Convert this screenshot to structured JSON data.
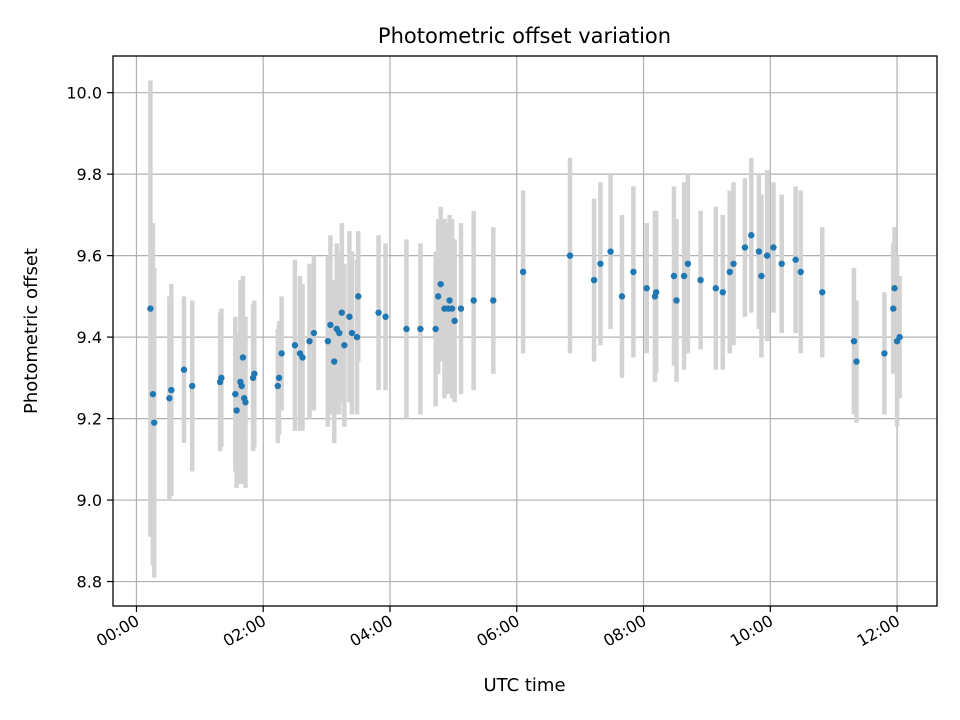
{
  "chart_data": {
    "type": "scatter",
    "title": "Photometric offset variation",
    "xlabel": "UTC time",
    "ylabel": "Photometric offset",
    "x_unit": "hours UTC",
    "x_tick_values": [
      0,
      2,
      4,
      6,
      8,
      10,
      12
    ],
    "x_tick_labels": [
      "00:00",
      "02:00",
      "04:00",
      "06:00",
      "08:00",
      "10:00",
      "12:00"
    ],
    "y_ticks": [
      8.8,
      9.0,
      9.2,
      9.4,
      9.6,
      9.8,
      10.0
    ],
    "y_tick_labels": [
      "8.8",
      "9.0",
      "9.2",
      "9.4",
      "9.6",
      "9.8",
      "10.0"
    ],
    "xlim": [
      -0.37,
      12.63
    ],
    "ylim": [
      8.74,
      10.09
    ],
    "grid": true,
    "legend": "none",
    "colors": {
      "point": "#1f77b4",
      "errorbar": "#d3d3d3",
      "grid": "#b0b0b0"
    },
    "series": [
      {
        "x": [
          0.22,
          0.26,
          0.28,
          0.52,
          0.55,
          0.75,
          0.88,
          1.32,
          1.34,
          1.56,
          1.58,
          1.64,
          1.66,
          1.68,
          1.7,
          1.72,
          1.84,
          1.86,
          2.23,
          2.25,
          2.29,
          2.5,
          2.58,
          2.62,
          2.73,
          2.8,
          3.02,
          3.06,
          3.12,
          3.16,
          3.2,
          3.24,
          3.28,
          3.36,
          3.4,
          3.48,
          3.5,
          3.82,
          3.93,
          4.26,
          4.48,
          4.72,
          4.76,
          4.8,
          4.86,
          4.92,
          4.94,
          4.98,
          5.02,
          5.12,
          5.32,
          5.63,
          6.1,
          6.84,
          7.22,
          7.32,
          7.48,
          7.66,
          7.84,
          8.05,
          8.18,
          8.2,
          8.48,
          8.52,
          8.64,
          8.7,
          8.9,
          9.14,
          9.25,
          9.36,
          9.42,
          9.6,
          9.7,
          9.82,
          9.86,
          9.95,
          10.05,
          10.18,
          10.4,
          10.48,
          10.82,
          11.32,
          11.36,
          11.8,
          11.94,
          11.96,
          12.0,
          12.04
        ],
        "y": [
          9.47,
          9.26,
          9.19,
          9.25,
          9.27,
          9.32,
          9.28,
          9.29,
          9.3,
          9.26,
          9.22,
          9.29,
          9.28,
          9.35,
          9.25,
          9.24,
          9.3,
          9.31,
          9.28,
          9.3,
          9.36,
          9.38,
          9.36,
          9.35,
          9.39,
          9.41,
          9.39,
          9.43,
          9.34,
          9.42,
          9.41,
          9.46,
          9.38,
          9.45,
          9.41,
          9.4,
          9.5,
          9.46,
          9.45,
          9.42,
          9.42,
          9.42,
          9.5,
          9.53,
          9.47,
          9.47,
          9.49,
          9.47,
          9.44,
          9.47,
          9.49,
          9.49,
          9.56,
          9.6,
          9.54,
          9.58,
          9.61,
          9.5,
          9.56,
          9.52,
          9.5,
          9.51,
          9.55,
          9.49,
          9.55,
          9.58,
          9.54,
          9.52,
          9.51,
          9.56,
          9.58,
          9.62,
          9.65,
          9.61,
          9.55,
          9.6,
          9.62,
          9.58,
          9.59,
          9.56,
          9.51,
          9.39,
          9.34,
          9.36,
          9.47,
          9.52,
          9.39,
          9.4
        ],
        "err": [
          0.56,
          0.42,
          0.38,
          0.25,
          0.26,
          0.18,
          0.21,
          0.17,
          0.17,
          0.19,
          0.19,
          0.25,
          0.24,
          0.2,
          0.2,
          0.21,
          0.18,
          0.18,
          0.14,
          0.14,
          0.14,
          0.21,
          0.19,
          0.18,
          0.19,
          0.19,
          0.21,
          0.22,
          0.2,
          0.21,
          0.2,
          0.22,
          0.2,
          0.21,
          0.2,
          0.19,
          0.16,
          0.19,
          0.18,
          0.22,
          0.21,
          0.19,
          0.19,
          0.19,
          0.22,
          0.21,
          0.21,
          0.22,
          0.2,
          0.21,
          0.22,
          0.18,
          0.2,
          0.24,
          0.2,
          0.2,
          0.19,
          0.2,
          0.21,
          0.16,
          0.21,
          0.2,
          0.22,
          0.2,
          0.23,
          0.22,
          0.17,
          0.2,
          0.19,
          0.2,
          0.2,
          0.17,
          0.19,
          0.19,
          0.2,
          0.21,
          0.16,
          0.17,
          0.18,
          0.2,
          0.16,
          0.18,
          0.15,
          0.15,
          0.16,
          0.15,
          0.21,
          0.15
        ]
      }
    ]
  }
}
